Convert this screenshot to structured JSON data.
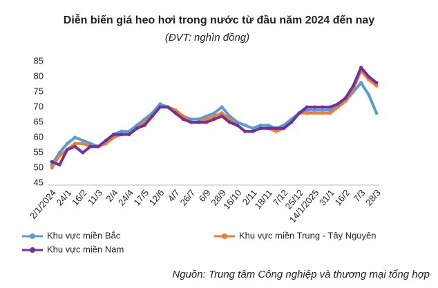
{
  "chart_data": {
    "type": "line",
    "title": "Diễn biến giá heo hơi trong nước từ đầu năm 2024 đến nay",
    "subtitle": "(ĐVT: nghìn đồng)",
    "source": "Nguồn: Trung tâm Công nghiệp và thương mại tổng hợp",
    "categories": [
      "2/1/2024",
      null,
      "24/1",
      null,
      "16/2",
      null,
      "11/3",
      null,
      "2/4",
      null,
      "24/4",
      null,
      "17/5",
      null,
      "12/6",
      null,
      "4/7",
      null,
      "26/7",
      null,
      "6/9",
      null,
      "28/9",
      null,
      "16/10",
      null,
      "2/11",
      null,
      "18/11",
      null,
      "7/12",
      null,
      "25/12",
      null,
      "14/1/2025",
      null,
      "31/1",
      null,
      "16/2",
      null,
      "7/3",
      null,
      "28/3"
    ],
    "ylim": [
      45,
      85
    ],
    "yticks": [
      45,
      50,
      55,
      60,
      65,
      70,
      75,
      80,
      85
    ],
    "grid": false,
    "series": [
      {
        "name": "Khu vực miền Bắc",
        "color": "#5b9bd5",
        "values": [
          51,
          55,
          58,
          60,
          59,
          58,
          57,
          58,
          61,
          62,
          62,
          64,
          66,
          68,
          71,
          70,
          69,
          67,
          66,
          66,
          67,
          68,
          70,
          67,
          65,
          64,
          63,
          64,
          64,
          63,
          64,
          66,
          68,
          69,
          69,
          69,
          69,
          70,
          72,
          75,
          78,
          74,
          68
        ]
      },
      {
        "name": "Khu vực miền Trung - Tây Nguyên",
        "color": "#ed7d31",
        "values": [
          50,
          54,
          56,
          58,
          58,
          57,
          57,
          58,
          60,
          61,
          61,
          63,
          65,
          67,
          70,
          70,
          69,
          67,
          65,
          65,
          66,
          67,
          68,
          66,
          64,
          62,
          62,
          63,
          63,
          62,
          63,
          65,
          68,
          68,
          68,
          68,
          68,
          70,
          72,
          76,
          82,
          79,
          77
        ]
      },
      {
        "name": "Khu vực miền Nam",
        "color": "#7030a0",
        "values": [
          52,
          51,
          56,
          57,
          55,
          57,
          57,
          59,
          61,
          61,
          61,
          63,
          64,
          67,
          70,
          70,
          68,
          66,
          65,
          65,
          65,
          66,
          67,
          65,
          64,
          62,
          62,
          63,
          63,
          63,
          63,
          65,
          68,
          70,
          70,
          70,
          70,
          71,
          73,
          77,
          83,
          80,
          78
        ]
      }
    ]
  }
}
